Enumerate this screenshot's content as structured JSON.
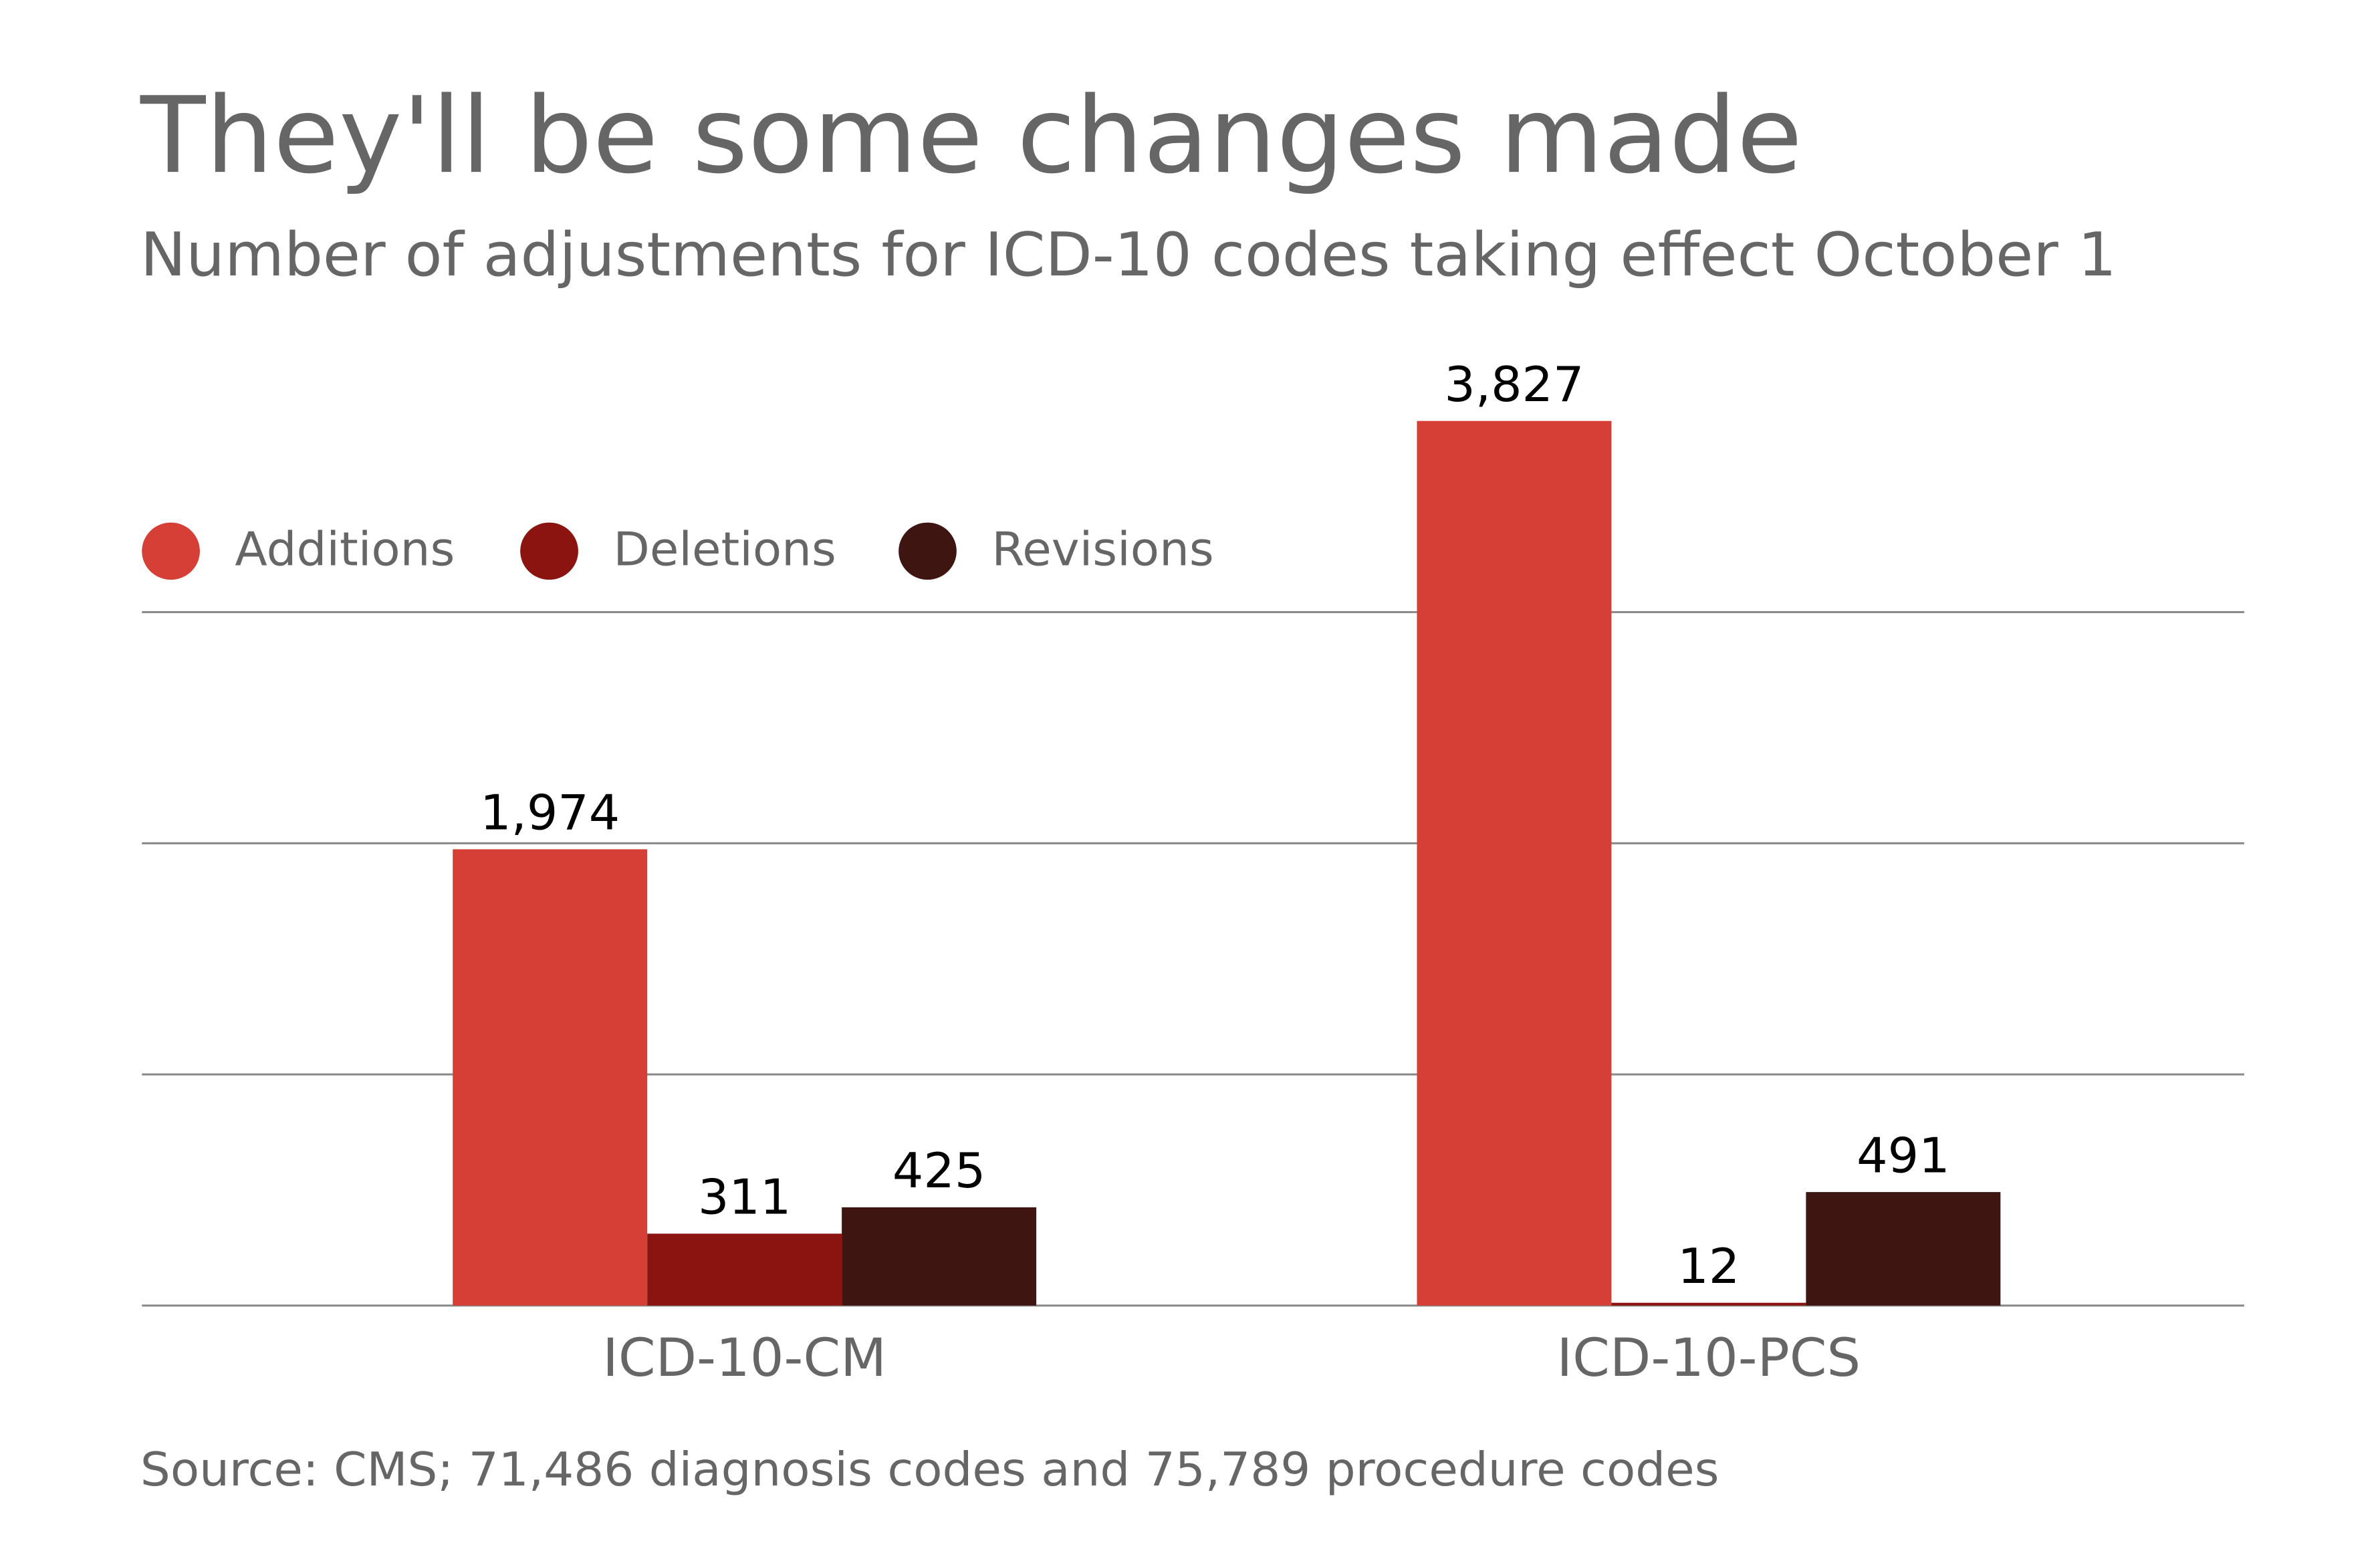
{
  "chart_data": {
    "type": "bar",
    "title": "They'll be some changes made",
    "subtitle": "Number of adjustments for ICD-10 codes taking effect October 1",
    "source": "Source: CMS; 71,486 diagnosis codes and 75,789 procedure codes",
    "categories": [
      "ICD-10-CM",
      "ICD-10-PCS"
    ],
    "series": [
      {
        "name": "Additions",
        "color": "#d63f35",
        "values": [
          1974,
          3827
        ],
        "value_labels": [
          "1,974",
          "3,827"
        ]
      },
      {
        "name": "Deletions",
        "color": "#8b1410",
        "values": [
          311,
          12
        ]
      },
      {
        "name": "Revisions",
        "color": "#3f1512",
        "values": [
          425,
          491
        ]
      }
    ],
    "ylim": [
      0,
      4000
    ],
    "yticks": [
      0,
      1000,
      2000,
      3000
    ],
    "grid": true,
    "legend": "top-left"
  }
}
